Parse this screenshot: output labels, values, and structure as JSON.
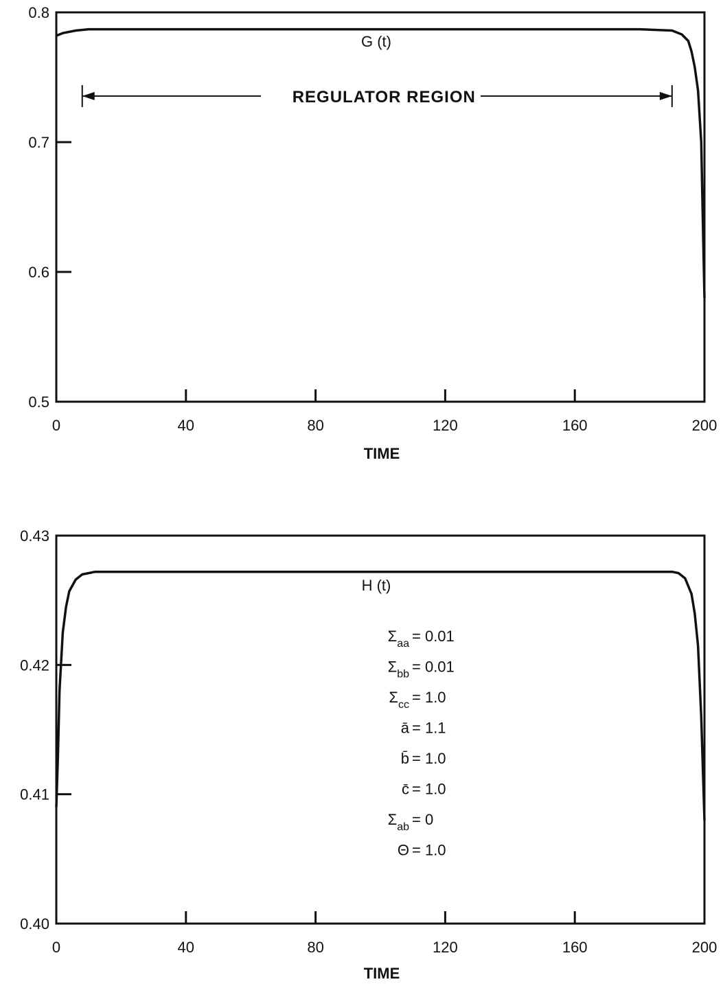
{
  "chart_data": [
    {
      "type": "line",
      "series": [
        {
          "name": "G (t)",
          "x": [
            0,
            1,
            2,
            4,
            6,
            10,
            20,
            40,
            80,
            120,
            160,
            180,
            190,
            193,
            195,
            196,
            197,
            198,
            199,
            199.5,
            200
          ],
          "y": [
            0.782,
            0.783,
            0.784,
            0.785,
            0.786,
            0.787,
            0.787,
            0.787,
            0.787,
            0.787,
            0.787,
            0.787,
            0.786,
            0.783,
            0.778,
            0.77,
            0.758,
            0.74,
            0.7,
            0.64,
            0.58
          ]
        }
      ],
      "xlabel": "TIME",
      "ylabel": "",
      "xlim": [
        0,
        200
      ],
      "ylim": [
        0.5,
        0.8
      ],
      "xticks": [
        "0",
        "40",
        "80",
        "120",
        "160",
        "200"
      ],
      "yticks": [
        "0.5",
        "0.6",
        "0.7",
        "0.8"
      ],
      "grid": false,
      "annotation": {
        "text": "REGULATOR REGION",
        "x_start": 8,
        "x_end": 190,
        "y": 0.7355
      }
    },
    {
      "type": "line",
      "series": [
        {
          "name": "H (t)",
          "x": [
            0,
            0.5,
            1,
            2,
            3,
            4,
            6,
            8,
            12,
            20,
            40,
            80,
            120,
            160,
            190,
            192,
            194,
            196,
            197,
            198,
            199,
            200
          ],
          "y": [
            0.409,
            0.413,
            0.418,
            0.4225,
            0.4245,
            0.4257,
            0.4266,
            0.427,
            0.4272,
            0.4272,
            0.4272,
            0.4272,
            0.4272,
            0.4272,
            0.4272,
            0.4271,
            0.4267,
            0.4255,
            0.424,
            0.4215,
            0.416,
            0.408
          ]
        }
      ],
      "xlabel": "TIME",
      "ylabel": "",
      "xlim": [
        0,
        200
      ],
      "ylim": [
        0.4,
        0.43
      ],
      "xticks": [
        "0",
        "40",
        "80",
        "120",
        "160",
        "200"
      ],
      "yticks": [
        "0.40",
        "0.41",
        "0.42",
        "0.43"
      ],
      "grid": false,
      "parameters": [
        {
          "symbol": "Σ",
          "sub": "aa",
          "value": "= 0.01"
        },
        {
          "symbol": "Σ",
          "sub": "bb",
          "value": "= 0.01"
        },
        {
          "symbol": "Σ",
          "sub": "cc",
          "value": "= 1.0"
        },
        {
          "symbol": "ā",
          "sub": "",
          "value": "= 1.1"
        },
        {
          "symbol": "b̄",
          "sub": "",
          "value": "= 1.0"
        },
        {
          "symbol": "c̄",
          "sub": "",
          "value": "= 1.0"
        },
        {
          "symbol": "Σ",
          "sub": "ab",
          "value": "= 0"
        },
        {
          "symbol": "Θ",
          "sub": "",
          "value": "= 1.0"
        }
      ]
    }
  ]
}
